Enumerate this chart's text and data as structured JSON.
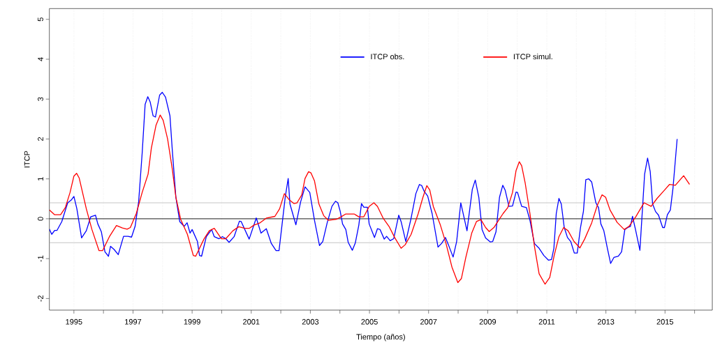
{
  "chart_data": {
    "type": "line",
    "xlabel": "Tiempo (años)",
    "ylabel": "ITCP",
    "xlim": [
      1994.17,
      2016.6
    ],
    "ylim": [
      -2.29,
      5.27
    ],
    "xticks": [
      1995,
      {
        "value": 1996,
        "label": null
      },
      1997,
      {
        "value": 1998,
        "label": null
      },
      1999,
      {
        "value": 2000,
        "label": null
      },
      2001,
      {
        "value": 2002,
        "label": null
      },
      2003,
      {
        "value": 2004,
        "label": null
      },
      2005,
      {
        "value": 2006,
        "label": null
      },
      2007,
      {
        "value": 2008,
        "label": null
      },
      2009,
      {
        "value": 2010,
        "label": null
      },
      2011,
      {
        "value": 2012,
        "label": null
      },
      2013,
      {
        "value": 2014,
        "label": null
      },
      2015,
      {
        "value": 2016,
        "label": null
      }
    ],
    "yticks": [
      -2,
      -1,
      0,
      1,
      2,
      3,
      4,
      5
    ],
    "grid": "x",
    "legend": "top",
    "line_style": "solid",
    "ref_lines": [
      {
        "axis": "y",
        "value": 0,
        "color": "#000000"
      },
      {
        "axis": "y",
        "value": 0.4,
        "color": "#bebebe"
      },
      {
        "axis": "y",
        "value": -0.6,
        "color": "#bebebe"
      }
    ],
    "series": [
      {
        "name": "ITCP obs.",
        "color": "#0000ff",
        "x": [
          1994.17,
          1994.25,
          1994.35,
          1994.43,
          1994.59,
          1994.79,
          1994.91,
          1995.0,
          1995.1,
          1995.26,
          1995.42,
          1995.57,
          1995.73,
          1995.81,
          1995.93,
          1996.05,
          1996.17,
          1996.24,
          1996.36,
          1996.5,
          1996.68,
          1996.83,
          1996.95,
          1997.07,
          1997.19,
          1997.31,
          1997.41,
          1997.5,
          1997.58,
          1997.68,
          1997.76,
          1997.9,
          1997.99,
          1998.1,
          1998.25,
          1998.33,
          1998.45,
          1998.58,
          1998.73,
          1998.83,
          1998.93,
          1999.0,
          1999.18,
          1999.25,
          1999.32,
          1999.48,
          1999.66,
          1999.75,
          1999.91,
          2000.03,
          2000.14,
          2000.25,
          2000.42,
          2000.6,
          2000.66,
          2000.93,
          2001.17,
          2001.33,
          2001.51,
          2001.68,
          2001.84,
          2001.94,
          2002.05,
          2002.15,
          2002.25,
          2002.31,
          2002.51,
          2002.67,
          2002.82,
          2002.98,
          2003.14,
          2003.31,
          2003.42,
          2003.57,
          2003.73,
          2003.85,
          2003.93,
          2004.01,
          2004.09,
          2004.2,
          2004.28,
          2004.42,
          2004.52,
          2004.64,
          2004.73,
          2004.81,
          2004.93,
          2004.99,
          2005.17,
          2005.27,
          2005.36,
          2005.5,
          2005.58,
          2005.7,
          2005.82,
          2005.99,
          2006.07,
          2006.23,
          2006.41,
          2006.57,
          2006.69,
          2006.77,
          2006.85,
          2006.97,
          2007.12,
          2007.32,
          2007.44,
          2007.57,
          2007.67,
          2007.83,
          2007.95,
          2008.09,
          2008.3,
          2008.48,
          2008.58,
          2008.7,
          2008.81,
          2008.93,
          2009.09,
          2009.17,
          2009.28,
          2009.4,
          2009.51,
          2009.59,
          2009.72,
          2009.84,
          2009.96,
          2010.01,
          2010.15,
          2010.31,
          2010.43,
          2010.58,
          2010.74,
          2010.9,
          2011.06,
          2011.16,
          2011.24,
          2011.32,
          2011.41,
          2011.49,
          2011.59,
          2011.7,
          2011.81,
          2011.93,
          2012.03,
          2012.14,
          2012.24,
          2012.32,
          2012.42,
          2012.52,
          2012.66,
          2012.75,
          2012.83,
          2012.93,
          2013.05,
          2013.16,
          2013.27,
          2013.42,
          2013.53,
          2013.64,
          2013.74,
          2013.83,
          2013.9,
          2014.01,
          2014.15,
          2014.31,
          2014.41,
          2014.5,
          2014.58,
          2014.68,
          2014.78,
          2014.92,
          2014.98,
          2015.08,
          2015.18,
          2015.27,
          2015.41
        ],
        "values": [
          -0.26,
          -0.39,
          -0.29,
          -0.29,
          -0.07,
          0.4,
          0.47,
          0.56,
          0.25,
          -0.48,
          -0.3,
          0.05,
          0.09,
          -0.13,
          -0.33,
          -0.83,
          -0.94,
          -0.69,
          -0.77,
          -0.9,
          -0.44,
          -0.44,
          -0.46,
          -0.19,
          0.42,
          1.65,
          2.87,
          3.06,
          2.93,
          2.58,
          2.55,
          3.1,
          3.17,
          3.05,
          2.58,
          1.71,
          0.54,
          -0.07,
          -0.19,
          -0.1,
          -0.36,
          -0.27,
          -0.57,
          -0.92,
          -0.94,
          -0.45,
          -0.27,
          -0.45,
          -0.5,
          -0.45,
          -0.5,
          -0.59,
          -0.45,
          -0.06,
          -0.07,
          -0.51,
          0.02,
          -0.36,
          -0.25,
          -0.62,
          -0.8,
          -0.8,
          -0.1,
          0.54,
          1.01,
          0.37,
          -0.15,
          0.42,
          0.8,
          0.66,
          -0.04,
          -0.67,
          -0.57,
          -0.1,
          0.31,
          0.44,
          0.4,
          0.19,
          -0.13,
          -0.27,
          -0.59,
          -0.79,
          -0.61,
          -0.16,
          0.38,
          0.29,
          0.29,
          -0.13,
          -0.47,
          -0.25,
          -0.27,
          -0.51,
          -0.44,
          -0.55,
          -0.5,
          0.09,
          -0.07,
          -0.57,
          0.02,
          0.63,
          0.86,
          0.83,
          0.69,
          0.57,
          0.13,
          -0.71,
          -0.62,
          -0.47,
          -0.65,
          -0.96,
          -0.57,
          0.4,
          -0.3,
          0.74,
          0.97,
          0.54,
          -0.27,
          -0.48,
          -0.58,
          -0.57,
          -0.33,
          0.54,
          0.84,
          0.72,
          0.31,
          0.32,
          0.67,
          0.66,
          0.31,
          0.28,
          -0.04,
          -0.62,
          -0.74,
          -0.92,
          -1.04,
          -1.02,
          -0.74,
          0.13,
          0.51,
          0.37,
          -0.22,
          -0.47,
          -0.57,
          -0.86,
          -0.86,
          -0.22,
          0.19,
          0.98,
          1.0,
          0.92,
          0.4,
          0.28,
          -0.13,
          -0.3,
          -0.74,
          -1.12,
          -0.97,
          -0.94,
          -0.83,
          -0.27,
          -0.22,
          -0.19,
          0.06,
          -0.3,
          -0.79,
          1.12,
          1.52,
          1.18,
          0.37,
          0.18,
          0.09,
          -0.22,
          -0.22,
          0.1,
          0.22,
          0.77,
          2.0
        ]
      },
      {
        "name": "ITCP simul.",
        "color": "#ff0000",
        "x": [
          1994.17,
          1994.35,
          1994.55,
          1994.71,
          1994.87,
          1995.0,
          1995.09,
          1995.18,
          1995.42,
          1995.61,
          1995.85,
          1995.97,
          1996.2,
          1996.44,
          1996.64,
          1996.8,
          1996.91,
          1997.11,
          1997.31,
          1997.51,
          1997.62,
          1997.78,
          1997.92,
          1998.02,
          1998.17,
          1998.33,
          1998.45,
          1998.61,
          1998.84,
          1999.04,
          1999.12,
          1999.4,
          1999.58,
          1999.75,
          1999.99,
          2000.14,
          2000.38,
          2000.58,
          2000.78,
          2000.93,
          2001.09,
          2001.28,
          2001.52,
          2001.8,
          2001.96,
          2002.12,
          2002.28,
          2002.45,
          2002.55,
          2002.71,
          2002.82,
          2002.94,
          2003.02,
          2003.14,
          2003.29,
          2003.45,
          2003.61,
          2003.89,
          2004.04,
          2004.2,
          2004.48,
          2004.64,
          2004.81,
          2004.99,
          2005.15,
          2005.27,
          2005.46,
          2005.66,
          2005.86,
          2006.07,
          2006.21,
          2006.41,
          2006.65,
          2006.81,
          2006.94,
          2007.04,
          2007.16,
          2007.4,
          2007.59,
          2007.79,
          2007.99,
          2008.11,
          2008.26,
          2008.46,
          2008.62,
          2008.77,
          2008.93,
          2009.05,
          2009.21,
          2009.37,
          2009.52,
          2009.68,
          2009.84,
          2009.96,
          2010.07,
          2010.15,
          2010.27,
          2010.43,
          2010.58,
          2010.74,
          2010.94,
          2011.1,
          2011.25,
          2011.41,
          2011.57,
          2011.72,
          2011.92,
          2012.12,
          2012.28,
          2012.52,
          2012.71,
          2012.87,
          2012.99,
          2013.14,
          2013.38,
          2013.62,
          2013.78,
          2014.01,
          2014.17,
          2014.29,
          2014.53,
          2014.73,
          2014.96,
          2015.15,
          2015.35,
          2015.63,
          2015.83
        ],
        "values": [
          0.22,
          0.1,
          0.1,
          0.28,
          0.66,
          1.07,
          1.14,
          1.02,
          0.25,
          -0.27,
          -0.8,
          -0.8,
          -0.45,
          -0.17,
          -0.23,
          -0.26,
          -0.22,
          0.13,
          0.66,
          1.12,
          1.77,
          2.35,
          2.6,
          2.47,
          2.0,
          1.24,
          0.54,
          -0.01,
          -0.39,
          -0.92,
          -0.94,
          -0.51,
          -0.3,
          -0.24,
          -0.5,
          -0.5,
          -0.3,
          -0.2,
          -0.24,
          -0.24,
          -0.16,
          -0.11,
          0.02,
          0.06,
          0.25,
          0.63,
          0.48,
          0.38,
          0.4,
          0.6,
          1.01,
          1.18,
          1.15,
          0.95,
          0.37,
          0.08,
          -0.04,
          -0.01,
          0.05,
          0.12,
          0.12,
          0.05,
          0.05,
          0.31,
          0.4,
          0.31,
          0.02,
          -0.19,
          -0.48,
          -0.74,
          -0.65,
          -0.39,
          0.13,
          0.54,
          0.83,
          0.72,
          0.31,
          -0.16,
          -0.62,
          -1.21,
          -1.6,
          -1.5,
          -0.97,
          -0.36,
          -0.07,
          -0.02,
          -0.22,
          -0.32,
          -0.22,
          -0.04,
          0.13,
          0.28,
          0.66,
          1.21,
          1.43,
          1.33,
          0.89,
          0.13,
          -0.68,
          -1.38,
          -1.64,
          -1.47,
          -0.92,
          -0.45,
          -0.22,
          -0.3,
          -0.57,
          -0.73,
          -0.51,
          -0.1,
          0.34,
          0.6,
          0.54,
          0.22,
          -0.09,
          -0.27,
          -0.19,
          0.05,
          0.25,
          0.4,
          0.31,
          0.51,
          0.7,
          0.86,
          0.84,
          1.08,
          0.86
        ]
      }
    ]
  }
}
